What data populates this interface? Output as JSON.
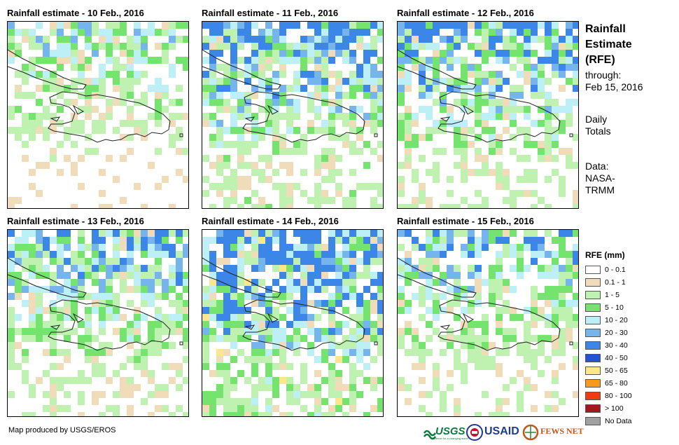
{
  "panels": [
    {
      "title": "Rainfall estimate - 10 Feb., 2016",
      "seed": 11,
      "wetness": 0.9
    },
    {
      "title": "Rainfall estimate - 11 Feb., 2016",
      "seed": 23,
      "wetness": 1.4
    },
    {
      "title": "Rainfall estimate - 12 Feb., 2016",
      "seed": 37,
      "wetness": 1.3
    },
    {
      "title": "Rainfall estimate - 13 Feb., 2016",
      "seed": 41,
      "wetness": 1.2
    },
    {
      "title": "Rainfall estimate - 14 Feb., 2016",
      "seed": 53,
      "wetness": 1.8
    },
    {
      "title": "Rainfall estimate - 15 Feb., 2016",
      "seed": 67,
      "wetness": 1.1
    }
  ],
  "info": {
    "title_lines": [
      "Rainfall",
      "Estimate",
      "(RFE)"
    ],
    "through_label": "through:",
    "through_date": "Feb 15, 2016",
    "totals_lines": [
      "Daily",
      "Totals"
    ],
    "data_lines": [
      "Data:",
      "NASA-",
      "TRMM"
    ]
  },
  "legend": {
    "title": "RFE (mm)",
    "items": [
      {
        "label": "0 - 0.1",
        "color": "#ffffff"
      },
      {
        "label": "0.1 - 1",
        "color": "#f0dcb9"
      },
      {
        "label": "1 - 5",
        "color": "#bff2b0"
      },
      {
        "label": "5 - 10",
        "color": "#74e46e"
      },
      {
        "label": "10 - 20",
        "color": "#bdf0f6"
      },
      {
        "label": "20 - 30",
        "color": "#76b4ec"
      },
      {
        "label": "30 - 40",
        "color": "#3c86e8"
      },
      {
        "label": "40 - 50",
        "color": "#1f55d4"
      },
      {
        "label": "50 - 65",
        "color": "#fde68c"
      },
      {
        "label": "65 - 80",
        "color": "#f59a1c"
      },
      {
        "label": "80 - 100",
        "color": "#f03a12"
      },
      {
        "label": "> 100",
        "color": "#a3181c"
      },
      {
        "label": "No Data",
        "color": "#a0a0a0"
      }
    ]
  },
  "footer": {
    "credit": "Map produced by USGS/EROS",
    "logos": [
      "USGS",
      "USAID",
      "FEWS NET"
    ],
    "usgs_tagline": "science for a changing world"
  }
}
